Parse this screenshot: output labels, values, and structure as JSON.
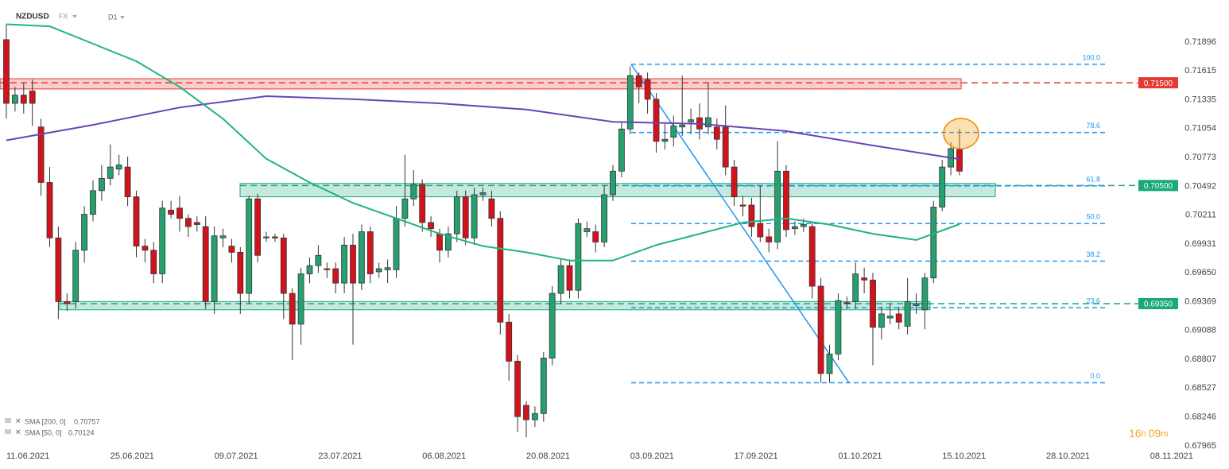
{
  "toolbar": {
    "symbol": "NZDUSD",
    "market": "FX",
    "timeframe": "D1"
  },
  "chart_data": {
    "type": "candlestick",
    "xlim": [
      -0.7339,
      141.1
    ],
    "xticks": [
      {
        "value": 0,
        "label": "11.06.2021"
      },
      {
        "value": 12,
        "label": "25.06.2021"
      },
      {
        "value": 24,
        "label": "09.07.2021"
      },
      {
        "value": 36,
        "label": "23.07.2021"
      },
      {
        "value": 48,
        "label": "06.08.2021"
      },
      {
        "value": 60,
        "label": "20.08.2021"
      },
      {
        "value": 72,
        "label": "03.09.2021"
      },
      {
        "value": 84,
        "label": "17.09.2021"
      },
      {
        "value": 96,
        "label": "01.10.2021"
      },
      {
        "value": 108,
        "label": "15.10.2021"
      },
      {
        "value": 120,
        "label": "28.10.2021"
      },
      {
        "value": 132,
        "label": "08.11.2021"
      }
    ],
    "ylim": [
      0.67895,
      0.72306
    ],
    "yticks": [
      0.71896,
      0.71615,
      0.71335,
      0.71054,
      0.70773,
      0.70492,
      0.70211,
      0.69931,
      {
        "value": 0.6965,
        "label": "0.69650"
      },
      0.69369,
      0.69088,
      0.68807,
      0.68527,
      0.68246,
      0.67965
    ],
    "up_color": "#26a06f",
    "down_color": "#d3131c",
    "open": [
      0.7192,
      0.713,
      0.7138,
      0.7142,
      0.7107,
      0.7053,
      0.6999,
      0.6937,
      0.6937,
      0.6987,
      0.7022,
      0.7045,
      0.7057,
      0.7066,
      0.7068,
      0.7039,
      0.6991,
      0.6987,
      0.6964,
      0.7026,
      0.7028,
      0.7018,
      0.7014,
      0.701,
      0.6937,
      0.6999,
      0.6991,
      0.6985,
      0.6945,
      0.7037,
      0.6999,
      0.7,
      0.6999,
      0.6945,
      0.6915,
      0.6964,
      0.6972,
      0.6969,
      0.6969,
      0.6955,
      0.6992,
      0.6955,
      0.7005,
      0.6966,
      0.6968,
      0.6968,
      0.7018,
      0.7037,
      0.7051,
      0.7014,
      0.7003,
      0.6987,
      0.7003,
      0.7039,
      0.6999,
      0.7041,
      0.7037,
      0.7018,
      0.6917,
      0.6879,
      0.6836,
      0.6822,
      0.6828,
      0.6882,
      0.6945,
      0.6972,
      0.6948,
      0.7005,
      0.7005,
      0.6995,
      0.7041,
      0.7064,
      0.7105,
      0.7157,
      0.7153,
      0.7134,
      0.7093,
      0.7097,
      0.7107,
      0.7112,
      0.7116,
      0.7107,
      0.7107,
      0.7107,
      0.7068,
      0.7031,
      0.7031,
      0.7013,
      0.7,
      0.6995,
      0.7064,
      0.7008,
      0.701,
      0.701,
      0.6952,
      0.6867,
      0.6886,
      0.6936,
      0.6937,
      0.696,
      0.6958,
      0.6912,
      0.6921,
      0.6925,
      0.6913,
      0.6933,
      0.6929,
      0.696,
      0.7029,
      0.7068,
      0.7085
    ],
    "high": [
      0.7207,
      0.7146,
      0.715,
      0.7153,
      0.7115,
      0.7068,
      0.701,
      0.6945,
      0.6995,
      0.703,
      0.7055,
      0.707,
      0.709,
      0.708,
      0.7078,
      0.7045,
      0.6998,
      0.6995,
      0.7035,
      0.7035,
      0.704,
      0.7022,
      0.702,
      0.702,
      0.701,
      0.7008,
      0.6998,
      0.699,
      0.704,
      0.7042,
      0.7005,
      0.7003,
      0.7003,
      0.695,
      0.697,
      0.698,
      0.6992,
      0.6975,
      0.6975,
      0.7,
      0.7003,
      0.7012,
      0.701,
      0.6975,
      0.6978,
      0.703,
      0.708,
      0.7065,
      0.7056,
      0.702,
      0.7008,
      0.701,
      0.7045,
      0.7045,
      0.7048,
      0.7048,
      0.7045,
      0.7025,
      0.6925,
      0.6885,
      0.684,
      0.6835,
      0.6888,
      0.6952,
      0.6978,
      0.6978,
      0.7018,
      0.7015,
      0.7012,
      0.705,
      0.707,
      0.7112,
      0.7166,
      0.716,
      0.716,
      0.714,
      0.711,
      0.7118,
      0.7157,
      0.7125,
      0.713,
      0.715,
      0.7115,
      0.7128,
      0.7075,
      0.704,
      0.7038,
      0.705,
      0.7008,
      0.7093,
      0.707,
      0.7015,
      0.7018,
      0.7015,
      0.696,
      0.6895,
      0.6945,
      0.6942,
      0.6975,
      0.697,
      0.6965,
      0.6932,
      0.6935,
      0.6932,
      0.696,
      0.6945,
      0.6965,
      0.7035,
      0.7075,
      0.7092,
      0.7105
    ],
    "low": [
      0.7115,
      0.7122,
      0.712,
      0.7108,
      0.704,
      0.699,
      0.692,
      0.6928,
      0.693,
      0.6975,
      0.7015,
      0.7035,
      0.705,
      0.706,
      0.703,
      0.698,
      0.6975,
      0.6955,
      0.6955,
      0.7018,
      0.7005,
      0.7,
      0.7005,
      0.693,
      0.6925,
      0.699,
      0.6975,
      0.6925,
      0.6935,
      0.6975,
      0.6995,
      0.6995,
      0.692,
      0.688,
      0.6895,
      0.6955,
      0.6965,
      0.696,
      0.6945,
      0.6945,
      0.6895,
      0.6948,
      0.6955,
      0.696,
      0.6955,
      0.696,
      0.701,
      0.703,
      0.7005,
      0.7,
      0.6975,
      0.698,
      0.6995,
      0.6992,
      0.6992,
      0.7035,
      0.701,
      0.6905,
      0.686,
      0.681,
      0.6805,
      0.6815,
      0.682,
      0.6875,
      0.6935,
      0.694,
      0.694,
      0.7,
      0.6985,
      0.699,
      0.7035,
      0.7058,
      0.71,
      0.713,
      0.712,
      0.7082,
      0.7085,
      0.7088,
      0.7098,
      0.71,
      0.7095,
      0.71,
      0.7085,
      0.706,
      0.703,
      0.702,
      0.7,
      0.6995,
      0.6985,
      0.6988,
      0.7,
      0.7002,
      0.7005,
      0.694,
      0.6858,
      0.6858,
      0.688,
      0.693,
      0.693,
      0.6945,
      0.6875,
      0.69,
      0.6915,
      0.691,
      0.6905,
      0.6925,
      0.691,
      0.6955,
      0.7025,
      0.706,
      0.706
    ],
    "close": [
      0.713,
      0.7138,
      0.713,
      0.713,
      0.7053,
      0.6999,
      0.6937,
      0.6935,
      0.6987,
      0.7022,
      0.7045,
      0.7057,
      0.7068,
      0.707,
      0.7039,
      0.6991,
      0.6987,
      0.6964,
      0.7028,
      0.7022,
      0.7018,
      0.701,
      0.7012,
      0.6937,
      0.7001,
      0.7001,
      0.6985,
      0.6945,
      0.7037,
      0.6982,
      0.7,
      0.6999,
      0.6945,
      0.6915,
      0.6964,
      0.6972,
      0.6982,
      0.6968,
      0.6955,
      0.6992,
      0.6955,
      0.7005,
      0.6964,
      0.6969,
      0.697,
      0.7018,
      0.7037,
      0.7051,
      0.7014,
      0.7008,
      0.6987,
      0.7003,
      0.7039,
      0.6999,
      0.7041,
      0.7043,
      0.7018,
      0.6917,
      0.6879,
      0.6825,
      0.6822,
      0.6828,
      0.6882,
      0.6945,
      0.6972,
      0.6948,
      0.7013,
      0.7008,
      0.6995,
      0.7041,
      0.7064,
      0.7105,
      0.7157,
      0.7146,
      0.7134,
      0.7093,
      0.7095,
      0.7108,
      0.7109,
      0.7114,
      0.7105,
      0.7116,
      0.7095,
      0.7068,
      0.7039,
      0.703,
      0.701,
      0.7,
      0.6995,
      0.7064,
      0.7007,
      0.701,
      0.7012,
      0.6952,
      0.6867,
      0.6886,
      0.6938,
      0.6935,
      0.6964,
      0.6958,
      0.6912,
      0.6925,
      0.6923,
      0.6917,
      0.6937,
      0.6935,
      0.696,
      0.7029,
      0.7068,
      0.7086,
      0.7064
    ],
    "series": [
      {
        "name": "SMA [200, 0]",
        "color": "#6a44b8",
        "x": [
          0,
          10,
          20,
          30,
          40,
          50,
          60,
          70,
          80,
          90,
          100,
          110
        ],
        "values": [
          0.7094,
          0.7109,
          0.7126,
          0.7137,
          0.7134,
          0.713,
          0.7124,
          0.7112,
          0.711,
          0.7103,
          0.7089,
          0.70757
        ]
      },
      {
        "name": "SMA [50, 0]",
        "color": "#1fb57a",
        "x": [
          0,
          5,
          10,
          15,
          20,
          25,
          30,
          35,
          40,
          45,
          50,
          55,
          60,
          65,
          70,
          75,
          80,
          85,
          90,
          95,
          100,
          105,
          110
        ],
        "values": [
          0.7207,
          0.7205,
          0.7188,
          0.7171,
          0.7146,
          0.7115,
          0.7076,
          0.7053,
          0.7033,
          0.7018,
          0.7003,
          0.6991,
          0.6985,
          0.6977,
          0.6977,
          0.6992,
          0.7003,
          0.7014,
          0.7018,
          0.7012,
          0.7003,
          0.6997,
          0.70124
        ]
      }
    ],
    "levels": [
      {
        "value": 0.715,
        "label": "0.71500",
        "color": "#e53935",
        "zone": [
          0.7144,
          0.7154
        ]
      },
      {
        "value": 0.705,
        "label": "0.70500",
        "color": "#19a97b",
        "zone": [
          0.7039,
          0.7052
        ]
      },
      {
        "value": 0.6935,
        "label": "0.69350",
        "color": "#19a97b",
        "zone": [
          0.6929,
          0.6937
        ]
      }
    ],
    "fibonacci": {
      "high": 0.7168,
      "low": 0.6858,
      "color": "#2196f3",
      "levels": [
        {
          "value": 100,
          "label": "100.0"
        },
        78.6,
        61.8,
        {
          "value": 50,
          "label": "50.0"
        },
        38.2,
        23.6,
        {
          "value": 0,
          "label": "0.0"
        }
      ]
    }
  },
  "countdown": {
    "hours": "16",
    "hours_unit": "h",
    "minutes": "09",
    "minutes_unit": "m"
  }
}
